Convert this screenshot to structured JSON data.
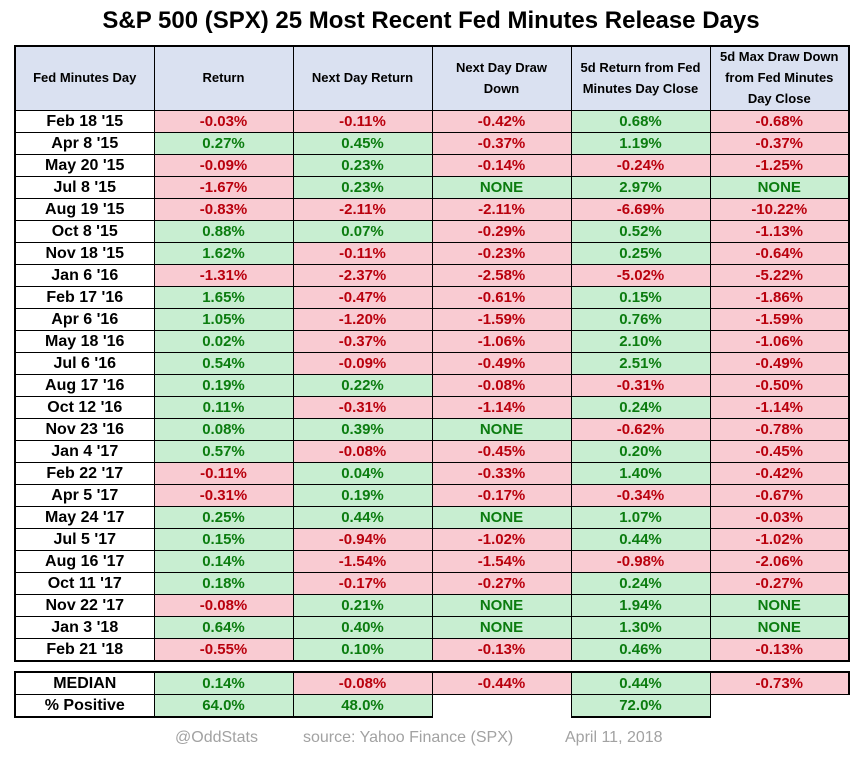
{
  "title": "S&P 500 (SPX) 25 Most Recent Fed Minutes Release Days",
  "colors": {
    "header_bg": "#dae1f1",
    "positive_bg": "#c8eed1",
    "positive_text": "#0b7c0f",
    "negative_bg": "#f9cbd2",
    "negative_text": "#b9000d",
    "border": "#000000",
    "footer_text": "#a2a2a2"
  },
  "chart_data": {
    "type": "table",
    "title": "S&P 500 (SPX) 25 Most Recent Fed Minutes Release Days",
    "columns": [
      "Fed Minutes Day",
      "Return",
      "Next Day Return",
      "Next Day Draw Down",
      "5d Return from Fed Minutes Day Close",
      "5d Max Draw Down from Fed Minutes Day Close"
    ],
    "rows": [
      [
        "Feb 18 '15",
        "-0.03%",
        "-0.11%",
        "-0.42%",
        "0.68%",
        "-0.68%"
      ],
      [
        "Apr 8 '15",
        "0.27%",
        "0.45%",
        "-0.37%",
        "1.19%",
        "-0.37%"
      ],
      [
        "May 20 '15",
        "-0.09%",
        "0.23%",
        "-0.14%",
        "-0.24%",
        "-1.25%"
      ],
      [
        "Jul 8 '15",
        "-1.67%",
        "0.23%",
        "NONE",
        "2.97%",
        "NONE"
      ],
      [
        "Aug 19 '15",
        "-0.83%",
        "-2.11%",
        "-2.11%",
        "-6.69%",
        "-10.22%"
      ],
      [
        "Oct 8 '15",
        "0.88%",
        "0.07%",
        "-0.29%",
        "0.52%",
        "-1.13%"
      ],
      [
        "Nov 18 '15",
        "1.62%",
        "-0.11%",
        "-0.23%",
        "0.25%",
        "-0.64%"
      ],
      [
        "Jan 6 '16",
        "-1.31%",
        "-2.37%",
        "-2.58%",
        "-5.02%",
        "-5.22%"
      ],
      [
        "Feb 17 '16",
        "1.65%",
        "-0.47%",
        "-0.61%",
        "0.15%",
        "-1.86%"
      ],
      [
        "Apr 6 '16",
        "1.05%",
        "-1.20%",
        "-1.59%",
        "0.76%",
        "-1.59%"
      ],
      [
        "May 18 '16",
        "0.02%",
        "-0.37%",
        "-1.06%",
        "2.10%",
        "-1.06%"
      ],
      [
        "Jul 6 '16",
        "0.54%",
        "-0.09%",
        "-0.49%",
        "2.51%",
        "-0.49%"
      ],
      [
        "Aug 17 '16",
        "0.19%",
        "0.22%",
        "-0.08%",
        "-0.31%",
        "-0.50%"
      ],
      [
        "Oct 12 '16",
        "0.11%",
        "-0.31%",
        "-1.14%",
        "0.24%",
        "-1.14%"
      ],
      [
        "Nov 23 '16",
        "0.08%",
        "0.39%",
        "NONE",
        "-0.62%",
        "-0.78%"
      ],
      [
        "Jan 4 '17",
        "0.57%",
        "-0.08%",
        "-0.45%",
        "0.20%",
        "-0.45%"
      ],
      [
        "Feb 22 '17",
        "-0.11%",
        "0.04%",
        "-0.33%",
        "1.40%",
        "-0.42%"
      ],
      [
        "Apr 5 '17",
        "-0.31%",
        "0.19%",
        "-0.17%",
        "-0.34%",
        "-0.67%"
      ],
      [
        "May 24 '17",
        "0.25%",
        "0.44%",
        "NONE",
        "1.07%",
        "-0.03%"
      ],
      [
        "Jul 5 '17",
        "0.15%",
        "-0.94%",
        "-1.02%",
        "0.44%",
        "-1.02%"
      ],
      [
        "Aug 16 '17",
        "0.14%",
        "-1.54%",
        "-1.54%",
        "-0.98%",
        "-2.06%"
      ],
      [
        "Oct 11 '17",
        "0.18%",
        "-0.17%",
        "-0.27%",
        "0.24%",
        "-0.27%"
      ],
      [
        "Nov 22 '17",
        "-0.08%",
        "0.21%",
        "NONE",
        "1.94%",
        "NONE"
      ],
      [
        "Jan 3 '18",
        "0.64%",
        "0.40%",
        "NONE",
        "1.30%",
        "NONE"
      ],
      [
        "Feb 21 '18",
        "-0.55%",
        "0.10%",
        "-0.13%",
        "0.46%",
        "-0.13%"
      ]
    ],
    "summary_rows": [
      [
        "MEDIAN",
        "0.14%",
        "-0.08%",
        "-0.44%",
        "0.44%",
        "-0.73%"
      ],
      [
        "% Positive",
        "64.0%",
        "48.0%",
        "",
        "72.0%",
        ""
      ]
    ]
  },
  "footer": {
    "handle": "@OddStats",
    "source": "source: Yahoo Finance (SPX)",
    "date": "April 11, 2018"
  }
}
